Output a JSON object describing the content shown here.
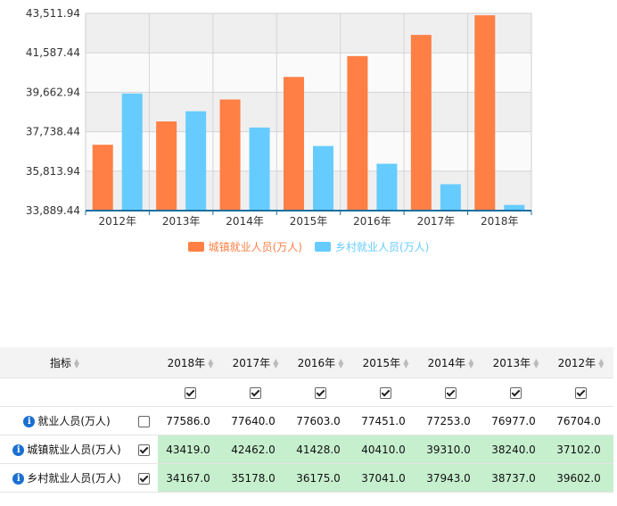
{
  "chart_data": {
    "type": "bar",
    "categories": [
      "2012年",
      "2013年",
      "2014年",
      "2015年",
      "2016年",
      "2017年",
      "2018年"
    ],
    "series": [
      {
        "name": "城镇就业人员(万人)",
        "values": [
          37102.0,
          38240.0,
          39310.0,
          40410.0,
          41428.0,
          42462.0,
          43419.0
        ]
      },
      {
        "name": "乡村就业人员(万人)",
        "values": [
          39602.0,
          38737.0,
          37943.0,
          37041.0,
          36175.0,
          35178.0,
          34167.0
        ]
      }
    ],
    "y_ticks": [
      "43,511.94",
      "41,587.44",
      "39,662.94",
      "37,738.44",
      "35,813.94",
      "33,889.44"
    ],
    "ylim": [
      33889.44,
      43511.94
    ],
    "grid": true,
    "legend_position": "bottom-center",
    "colors": {
      "urban": "#ff7f45",
      "rural": "#66ccff"
    }
  },
  "legend": {
    "items": [
      {
        "label": "城镇就业人员(万人)",
        "color": "#ff7f45"
      },
      {
        "label": "乡村就业人员(万人)",
        "color": "#66ccff"
      }
    ]
  },
  "table": {
    "header_label": "指标",
    "columns": [
      "2018年",
      "2017年",
      "2016年",
      "2015年",
      "2014年",
      "2013年",
      "2012年"
    ],
    "rows": [
      {
        "label": "就业人员(万人)",
        "checked": false,
        "values": [
          "77586.0",
          "77640.0",
          "77603.0",
          "77451.0",
          "77253.0",
          "76977.0",
          "76704.0"
        ],
        "highlight": false
      },
      {
        "label": "城镇就业人员(万人)",
        "checked": true,
        "values": [
          "43419.0",
          "42462.0",
          "41428.0",
          "40410.0",
          "39310.0",
          "38240.0",
          "37102.0"
        ],
        "highlight": true
      },
      {
        "label": "乡村就业人员(万人)",
        "checked": true,
        "values": [
          "34167.0",
          "35178.0",
          "36175.0",
          "37041.0",
          "37943.0",
          "38737.0",
          "39602.0"
        ],
        "highlight": true
      }
    ]
  }
}
